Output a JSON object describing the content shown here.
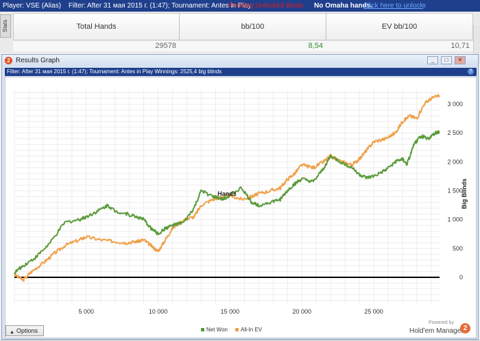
{
  "topbar": {
    "player": "Player: VSE (Alias)",
    "filter": "Filter: After 31 мая 2015 г. (1:47); Tournament: Antes in Play",
    "warning": "Pending Unlocked Beats",
    "omaha": "No Omaha hands.",
    "unlock": "Click here to unlock",
    "close": "x"
  },
  "stats": {
    "tab_label": "Stats",
    "headers": [
      "Total Hands",
      "bb/100",
      "EV bb/100"
    ],
    "values": [
      "29578",
      "8,54",
      "10,71"
    ],
    "value_colors": [
      "#666666",
      "#2e8b2e",
      "#666666"
    ]
  },
  "window": {
    "title": "Results Graph",
    "logo": "2",
    "min": "_",
    "max": "□",
    "close": "✕",
    "filter_text": "Filter: After 31 мая 2015 г. (1:47); Tournament: Antes in Play  Winnings: 2525,4 big blinds",
    "help": "?",
    "options_label": "Options",
    "options_arrow": "▲",
    "powered_by": "Powered by",
    "brand": "Hold'em Manager",
    "brand_logo": "2"
  },
  "chart_data": {
    "type": "line",
    "xlabel": "Hands",
    "ylabel": "Big Blinds",
    "xlim": [
      0,
      29578
    ],
    "ylim": [
      -450,
      3250
    ],
    "xticks": [
      5000,
      10000,
      15000,
      20000,
      25000
    ],
    "xtick_labels": [
      "5 000",
      "10 000",
      "15 000",
      "20 000",
      "25 000"
    ],
    "yticks": [
      0,
      500,
      1000,
      1500,
      2000,
      2500,
      3000
    ],
    "ytick_labels": [
      "0",
      "500",
      "1 000",
      "1 500",
      "2 000",
      "2 500",
      "3 000"
    ],
    "grid": true,
    "legend_position": "bottom-center",
    "series": [
      {
        "name": "Net Won",
        "color": "#5a9a3a",
        "x": [
          0,
          600,
          1500,
          2500,
          3500,
          4500,
          5000,
          5800,
          6500,
          7000,
          7800,
          8500,
          9000,
          9500,
          10000,
          10500,
          11000,
          11800,
          12500,
          13000,
          13800,
          14500,
          15000,
          15800,
          16500,
          17000,
          17800,
          18500,
          19000,
          19500,
          20000,
          20800,
          21500,
          22000,
          22800,
          23500,
          24000,
          24500,
          25000,
          25800,
          26500,
          27000,
          27300,
          27800,
          28300,
          28800,
          29300,
          29578
        ],
        "y": [
          80,
          200,
          350,
          600,
          950,
          1000,
          1050,
          1150,
          1250,
          1150,
          1100,
          1050,
          1000,
          850,
          750,
          850,
          900,
          950,
          1200,
          1500,
          1400,
          1350,
          1420,
          1550,
          1300,
          1250,
          1300,
          1350,
          1500,
          1620,
          1700,
          1650,
          1880,
          2100,
          1980,
          1900,
          1780,
          1720,
          1750,
          1850,
          2000,
          2050,
          1950,
          2300,
          2450,
          2400,
          2500,
          2520
        ]
      },
      {
        "name": "All-In EV",
        "color": "#f0a048",
        "x": [
          0,
          600,
          1200,
          2000,
          2700,
          3500,
          4500,
          5000,
          6000,
          7000,
          7800,
          8500,
          9000,
          9500,
          10000,
          10500,
          11000,
          11800,
          12500,
          13000,
          13800,
          14500,
          15000,
          15800,
          16500,
          17000,
          17800,
          18500,
          19000,
          19500,
          20000,
          20800,
          21500,
          22000,
          22800,
          23500,
          24000,
          24500,
          25000,
          25800,
          26500,
          27000,
          27500,
          28000,
          28500,
          29000,
          29578
        ],
        "y": [
          50,
          -50,
          100,
          250,
          400,
          550,
          650,
          700,
          650,
          620,
          600,
          620,
          650,
          550,
          450,
          650,
          850,
          1000,
          1050,
          1250,
          1350,
          1400,
          1420,
          1350,
          1400,
          1450,
          1500,
          1550,
          1700,
          1800,
          1950,
          1900,
          2000,
          2100,
          2000,
          1950,
          2050,
          2200,
          2350,
          2400,
          2500,
          2700,
          2800,
          2750,
          3000,
          3100,
          3150
        ]
      }
    ]
  }
}
